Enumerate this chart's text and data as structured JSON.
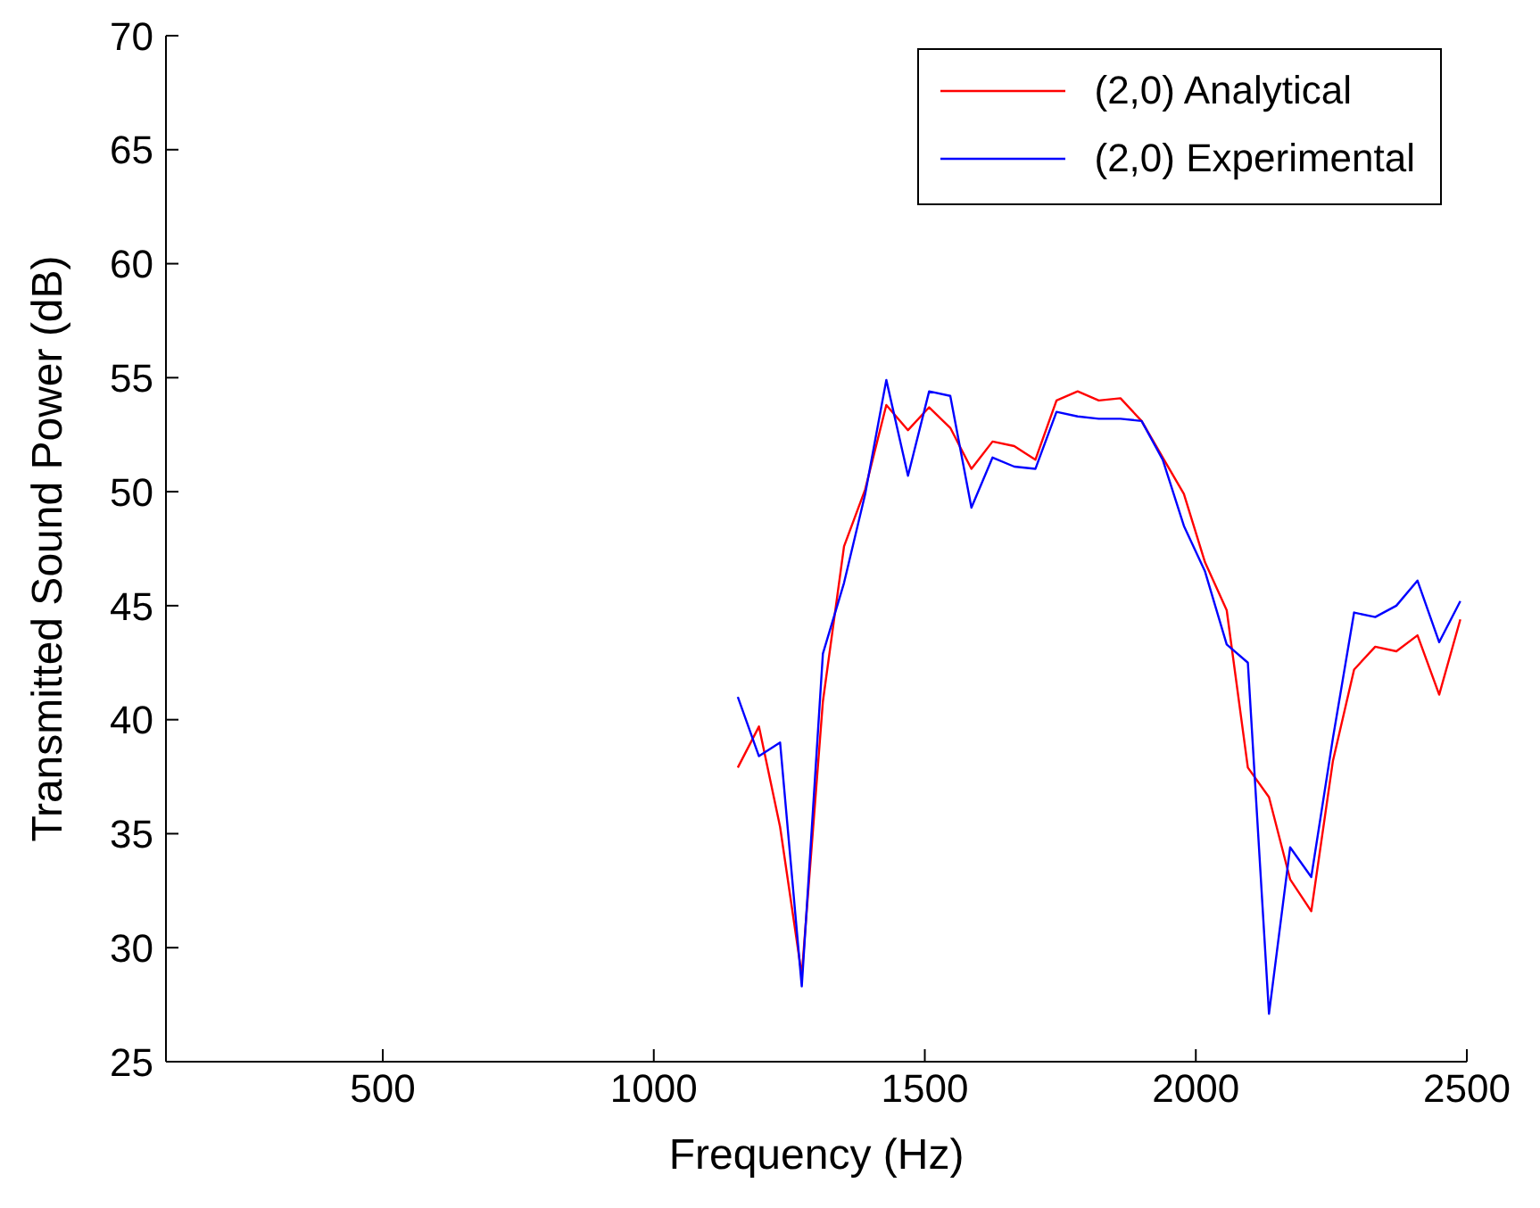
{
  "chart_data": {
    "type": "line",
    "xlabel": "Frequency (Hz)",
    "ylabel": "Transmitted Sound Power (dB)",
    "x": [
      1155,
      1194,
      1233,
      1273,
      1312,
      1351,
      1390,
      1429,
      1469,
      1508,
      1547,
      1586,
      1625,
      1665,
      1704,
      1743,
      1782,
      1821,
      1861,
      1900,
      1939,
      1978,
      2017,
      2057,
      2096,
      2135,
      2174,
      2213,
      2253,
      2292,
      2331,
      2370,
      2409,
      2449,
      2488
    ],
    "series": [
      {
        "name": "(2,0) Analytical",
        "color": "#ff0000",
        "values": [
          37.9,
          39.7,
          35.3,
          28.8,
          40.8,
          47.6,
          50.1,
          53.8,
          52.7,
          53.7,
          52.8,
          51.0,
          52.2,
          52.0,
          51.4,
          54.0,
          54.4,
          54.0,
          54.1,
          53.1,
          51.5,
          49.9,
          46.9,
          44.8,
          37.9,
          36.6,
          33.0,
          31.6,
          38.2,
          42.2,
          43.2,
          43.0,
          43.7,
          41.1,
          44.4
        ]
      },
      {
        "name": "(2,0) Experimental",
        "color": "#0000ff",
        "values": [
          41.0,
          38.4,
          39.0,
          28.3,
          42.9,
          46.0,
          49.9,
          54.9,
          50.7,
          54.4,
          54.2,
          49.3,
          51.5,
          51.1,
          51.0,
          53.5,
          53.3,
          53.2,
          53.2,
          53.1,
          51.4,
          48.5,
          46.5,
          43.3,
          42.5,
          27.1,
          34.4,
          33.1,
          39.2,
          44.7,
          44.5,
          45.0,
          46.1,
          43.4,
          45.2
        ]
      }
    ],
    "xlim": [
      100,
      2500
    ],
    "xticks": [
      500,
      1000,
      1500,
      2000,
      2500
    ],
    "ylim": [
      25,
      70
    ],
    "yticks": [
      25,
      30,
      35,
      40,
      45,
      50,
      55,
      60,
      65,
      70
    ],
    "grid": false,
    "legend": "top right",
    "marker": "none",
    "line_style": "solid"
  }
}
